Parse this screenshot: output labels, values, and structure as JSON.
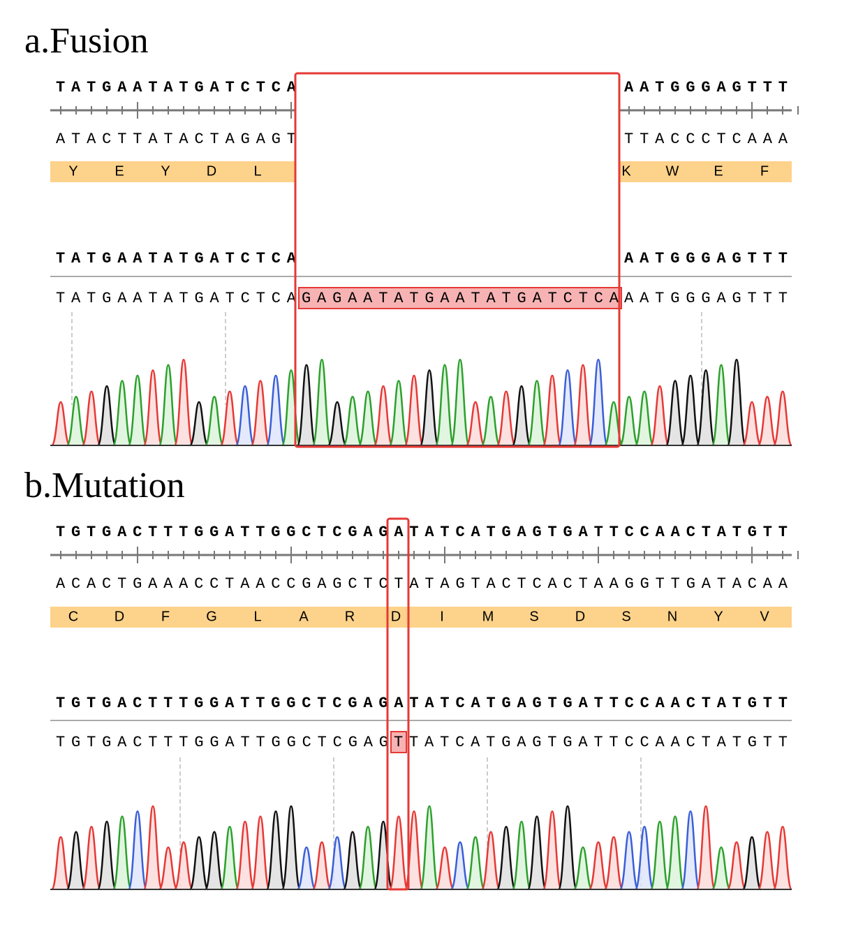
{
  "panels": [
    {
      "label": "a.Fusion",
      "forward": [
        "TATGAATATGATCTCA",
        "AATGGGAGTTT"
      ],
      "reverse": [
        "ATACTTATACTAGAGT",
        "TTACCCTCAAA"
      ],
      "translation": [
        [
          "Y",
          "E",
          "Y",
          "D",
          "L"
        ],
        [
          "K",
          "W",
          "E",
          "F"
        ]
      ],
      "reference": [
        "TATGAATATGATCTCA",
        "AATGGGAGTTT"
      ],
      "read": [
        "TATGAATATGATCTCA",
        "GAGAATATGAATATGATCTCA",
        "AATGGGAGTTT"
      ]
    },
    {
      "label": "b.Mutation",
      "forward": [
        "TGTGACTTTGGATTGGCTCGAGATATCATGAGTGATTCCAACTATGTT"
      ],
      "reverse": [
        "ACACTGAAACCTAACCGAGCTCTATAGTACTCACTAAGGTTGATACAA"
      ],
      "translation": [
        [
          "C",
          "D",
          "F",
          "G",
          "L",
          "A",
          "R",
          "D",
          "I",
          "M",
          "S",
          "D",
          "S",
          "N",
          "Y",
          "V"
        ]
      ],
      "reference": [
        "TGTGACTTTGGATTGGCTCGAGATATCATGAGTGATTCCAACTATGTT"
      ],
      "read": [
        "TGTGACTTTGGATTGGCTCGAG",
        "T",
        "TATCATGAGTGATTCCAACTATGTT"
      ]
    }
  ]
}
